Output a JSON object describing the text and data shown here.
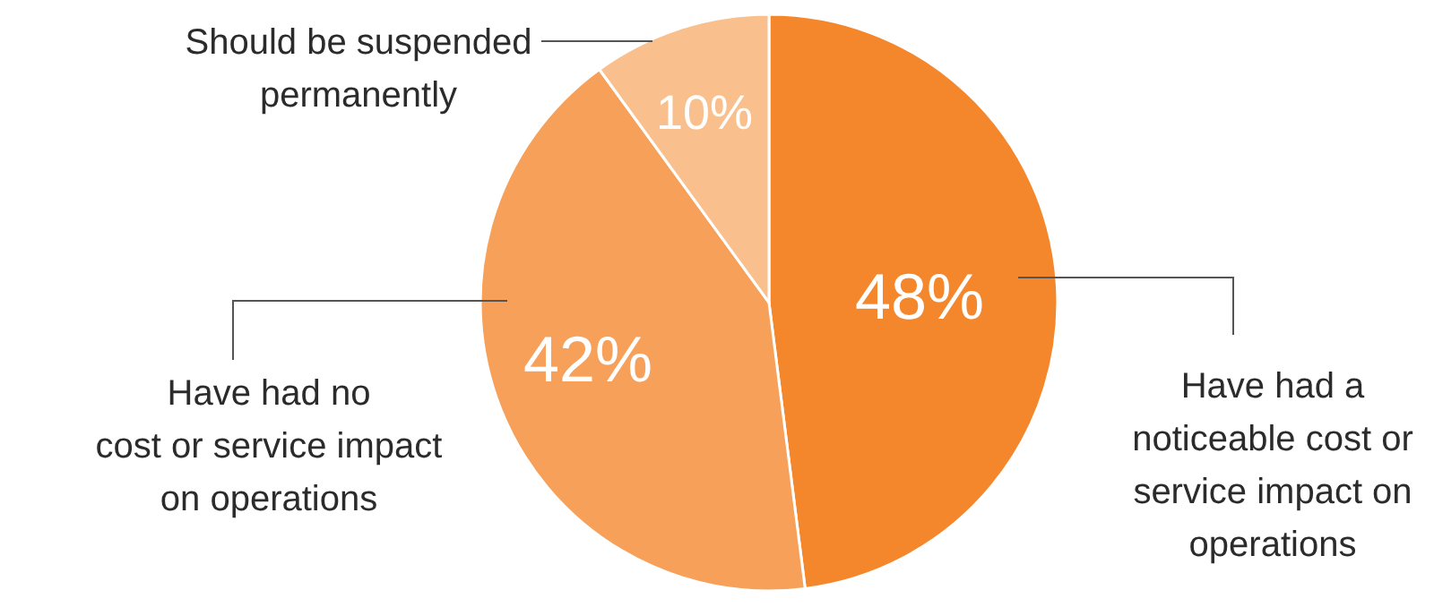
{
  "chart_data": {
    "type": "pie",
    "categories": [
      "Have had a noticeable cost or service impact on operations",
      "Have had no cost or service impact on operations",
      "Should be suspended permanently"
    ],
    "values": [
      48,
      42,
      10
    ],
    "value_labels": [
      "48%",
      "42%",
      "10%"
    ],
    "colors": [
      "#f4862c",
      "#f6a05a",
      "#f9bf8d"
    ],
    "legend": false
  }
}
